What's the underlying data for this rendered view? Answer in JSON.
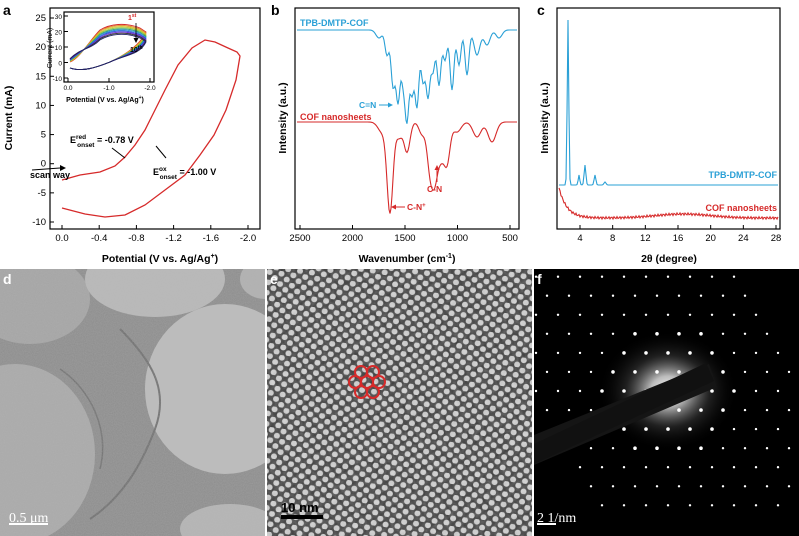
{
  "panels": {
    "a": "a",
    "b": "b",
    "c": "c",
    "d": "d",
    "e": "e",
    "f": "f"
  },
  "panel_a": {
    "ylabel": "Current (mA)",
    "xlabel": "Potential (V vs. Ag/Ag",
    "xlabel_sup": "+",
    "xlabel_end": ")",
    "x_ticks": [
      "0.0",
      "-0.4",
      "-0.8",
      "-1.2",
      "-1.6",
      "-2.0"
    ],
    "y_ticks": [
      "-10",
      "-5",
      "0",
      "5",
      "10",
      "15",
      "20",
      "25"
    ],
    "annotations": {
      "scan_way": "scan way",
      "e_red": "E",
      "e_red_sup": "red",
      "e_red_sub": "onset",
      "e_red_val": " = -0.78 V",
      "e_ox": "E",
      "e_ox_sup": "ox",
      "e_ox_sub": "onset",
      "e_ox_val": " = -1.00 V"
    },
    "inset": {
      "ylabel": "Current (mA)",
      "xlabel": "Potential (V vs. Ag/Ag",
      "xlabel_sup": "+",
      "xlabel_end": ")",
      "x_ticks": [
        "0.0",
        "-1.0",
        "-2.0"
      ],
      "y_ticks": [
        "-10",
        "0",
        "10",
        "20",
        "30"
      ],
      "first": "1",
      "first_sup": "st",
      "tenth": "10",
      "tenth_sup": "th"
    },
    "color": "#d62a2a"
  },
  "panel_b": {
    "ylabel": "Intensity (a.u.)",
    "xlabel": "Wavenumber (cm",
    "xlabel_sup": "-1",
    "xlabel_end": ")",
    "x_ticks": [
      "2500",
      "2000",
      "1500",
      "1000",
      "500"
    ],
    "series": [
      {
        "name": "TPB-DMTP-COF",
        "color": "#2aa0d6"
      },
      {
        "name": "COF nanosheets",
        "color": "#d62a2a"
      }
    ],
    "annotations": {
      "cn_double": "C=N",
      "cn_single": "C-N",
      "cn_plus": "C-N",
      "cn_plus_sup": "+"
    }
  },
  "panel_c": {
    "ylabel": "Intensity (a.u.)",
    "xlabel": "2θ (degree)",
    "x_ticks": [
      "4",
      "8",
      "12",
      "16",
      "20",
      "24",
      "28"
    ],
    "series": [
      {
        "name": "TPB-DMTP-COF",
        "color": "#2aa0d6"
      },
      {
        "name": "COF nanosheets",
        "color": "#d62a2a"
      }
    ]
  },
  "panel_d": {
    "scale_bar": "0.5 μm"
  },
  "panel_e": {
    "scale_bar": "10 nm"
  },
  "panel_f": {
    "scale_bar": "2 1/nm"
  }
}
